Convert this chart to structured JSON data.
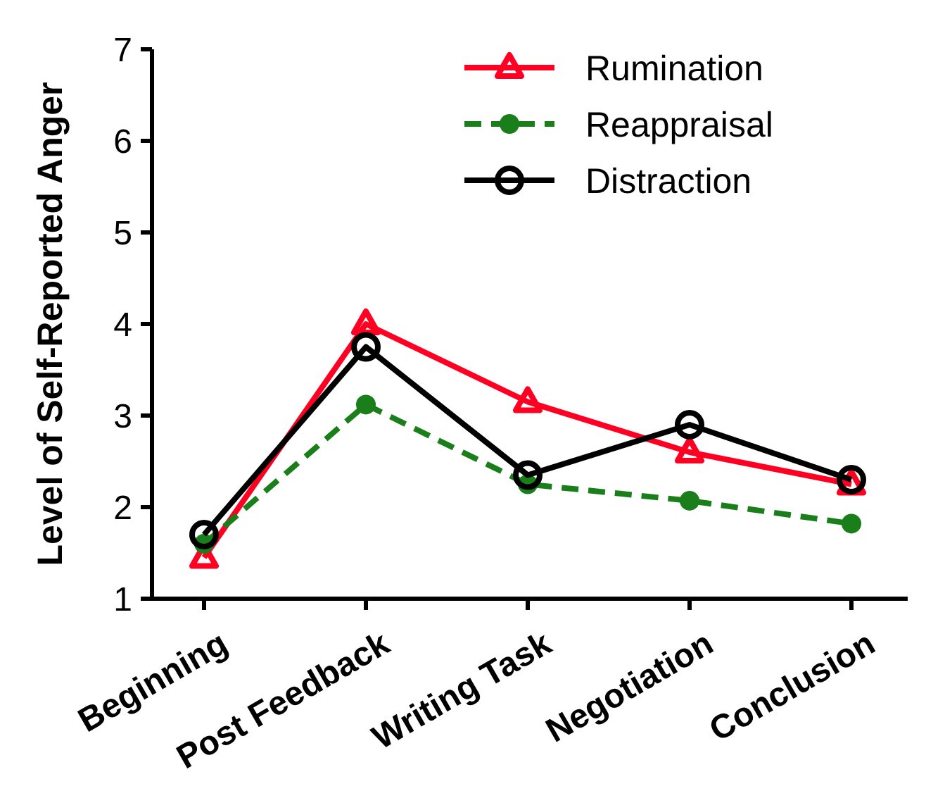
{
  "chart_data": {
    "type": "line",
    "ylabel": "Level of Self-Reported Anger",
    "categories": [
      "Beginning",
      "Post Feedback",
      "Writing Task",
      "Negotiation",
      "Conclusion"
    ],
    "ylim": [
      1,
      7
    ],
    "yticks": [
      1,
      2,
      3,
      4,
      5,
      6,
      7
    ],
    "grid": false,
    "legend": "top right",
    "series": [
      {
        "name": "Rumination",
        "color": "#ff0022",
        "marker": "triangle",
        "line_style": "solid",
        "values": [
          1.45,
          4.0,
          3.15,
          2.6,
          2.25
        ]
      },
      {
        "name": "Reappraisal",
        "color": "#1a7f1a",
        "marker": "circle",
        "line_style": "dashed",
        "values": [
          1.6,
          3.12,
          2.25,
          2.07,
          1.82
        ]
      },
      {
        "name": "Distraction",
        "color": "#000000",
        "marker": "circle",
        "line_style": "solid",
        "values": [
          1.7,
          3.75,
          2.35,
          2.9,
          2.3
        ]
      }
    ]
  }
}
